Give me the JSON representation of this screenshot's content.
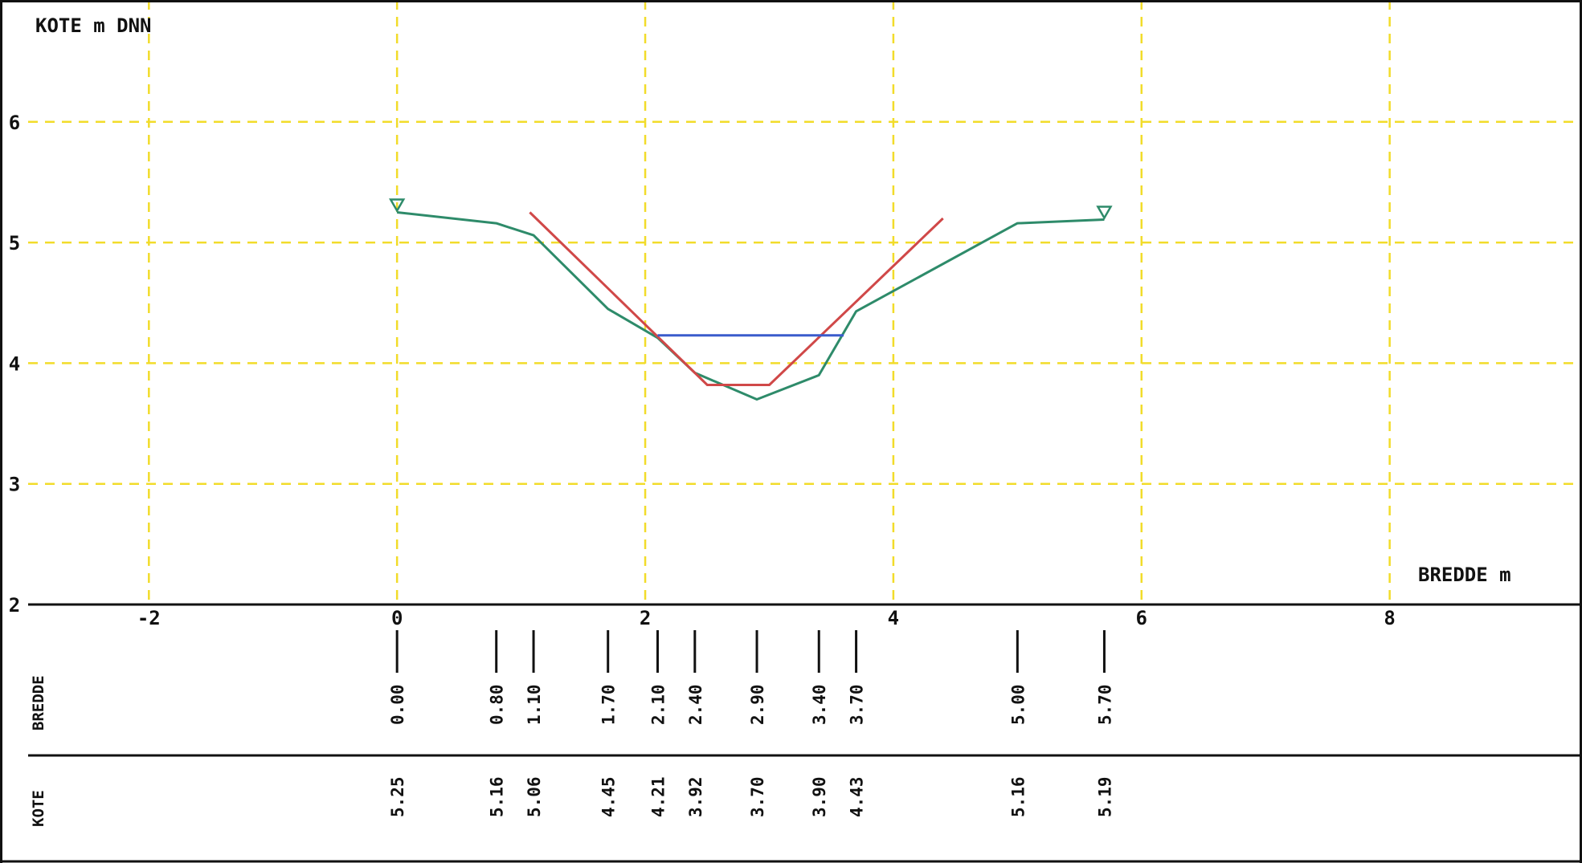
{
  "chart_data": {
    "type": "line",
    "title": "KOTE m DNN",
    "xlabel": "BREDDE m",
    "ylabel": "KOTE m DNN",
    "xlim": [
      -3.2,
      9.55
    ],
    "ylim": [
      2,
      7
    ],
    "x_ticks": [
      -2,
      0,
      2,
      4,
      6,
      8
    ],
    "y_ticks": [
      2,
      3,
      4,
      5,
      6
    ],
    "x_tick_labels": [
      "-2",
      "0",
      "2",
      "4",
      "6",
      "8"
    ],
    "y_tick_labels": [
      "2",
      "3",
      "4",
      "5",
      "6"
    ],
    "grid": true,
    "series": [
      {
        "color": "#2e8b6a",
        "x": [
          0.0,
          0.8,
          1.1,
          1.7,
          2.1,
          2.4,
          2.9,
          3.4,
          3.7,
          5.0,
          5.7
        ],
        "y": [
          5.25,
          5.16,
          5.06,
          4.45,
          4.21,
          3.92,
          3.7,
          3.9,
          4.43,
          5.16,
          5.19
        ]
      },
      {
        "color": "#d04848",
        "x": [
          1.07,
          2.5,
          3.0,
          4.4
        ],
        "y": [
          5.25,
          3.82,
          3.82,
          5.2
        ]
      },
      {
        "color": "#3a5ccc",
        "x": [
          2.1,
          3.6
        ],
        "y": [
          4.23,
          4.23
        ]
      }
    ],
    "markers": [
      {
        "symbol": "bank-marker-triangle",
        "x": 0.0,
        "y": 5.25
      },
      {
        "symbol": "bank-marker-triangle",
        "x": 5.7,
        "y": 5.19
      }
    ],
    "table": {
      "row_labels": [
        "BREDDE",
        "KOTE"
      ],
      "bredde": [
        "0.00",
        "0.80",
        "1.10",
        "1.70",
        "2.10",
        "2.40",
        "2.90",
        "3.40",
        "3.70",
        "5.00",
        "5.70"
      ],
      "kote": [
        "5.25",
        "5.16",
        "5.06",
        "4.45",
        "4.21",
        "3.92",
        "3.70",
        "3.90",
        "4.43",
        "5.16",
        "5.19"
      ]
    },
    "colors": {
      "grid": "#f2dc2a",
      "axis": "#111111"
    }
  }
}
